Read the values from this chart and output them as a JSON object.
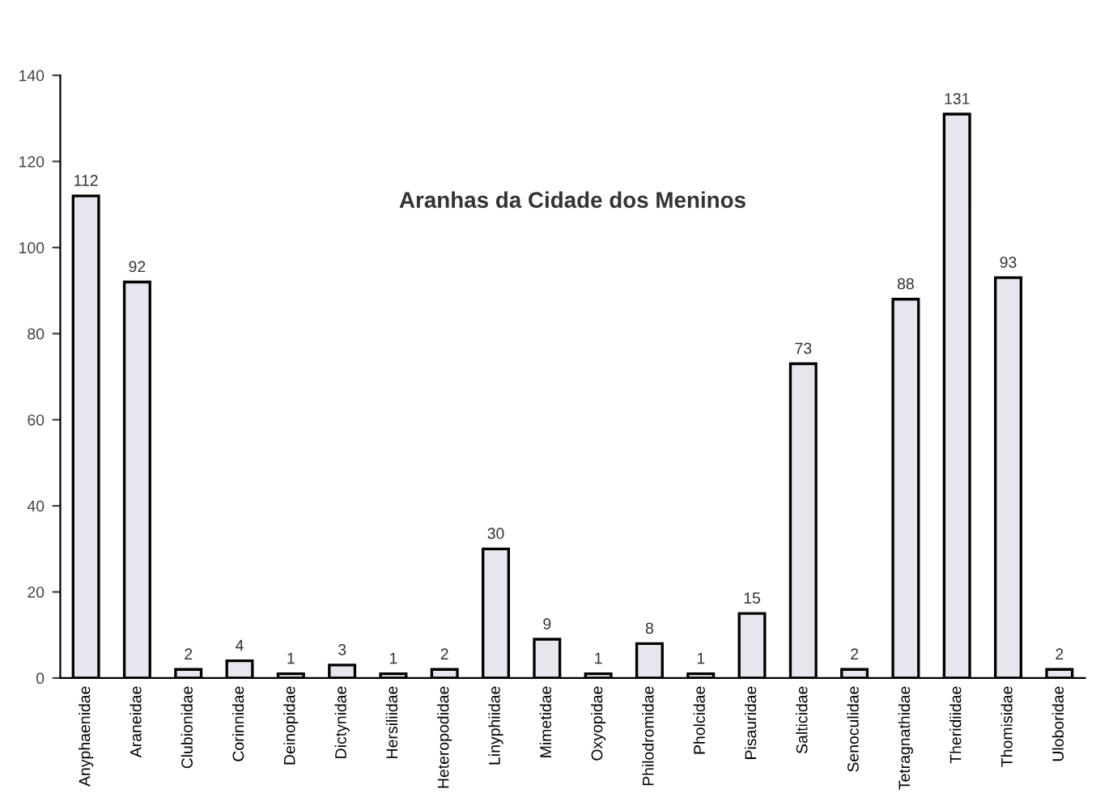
{
  "chart_data": {
    "type": "bar",
    "title": "Aranhas da Cidade dos Meninos",
    "categories": [
      "Anyphaenidae",
      "Araneidae",
      "Clubionidae",
      "Corinnidae",
      "Deinopidae",
      "Dictynidae",
      "Hersiliidae",
      "Heteropodidae",
      "Linyphiidae",
      "Mimetidae",
      "Oxyopidae",
      "Philodromidae",
      "Pholcidae",
      "Pisauridae",
      "Salticidae",
      "Senoculidae",
      "Tetragnathidae",
      "Theridiidae",
      "Thomisidae",
      "Uloboridae"
    ],
    "values": [
      112,
      92,
      2,
      4,
      1,
      3,
      1,
      2,
      30,
      9,
      1,
      8,
      1,
      15,
      73,
      2,
      88,
      131,
      93,
      2
    ],
    "color": "#e6e6ee",
    "ylim": [
      0,
      140
    ],
    "yticks": [
      0,
      20,
      40,
      60,
      80,
      100,
      120,
      140
    ],
    "grid": false,
    "data_labels": true
  }
}
